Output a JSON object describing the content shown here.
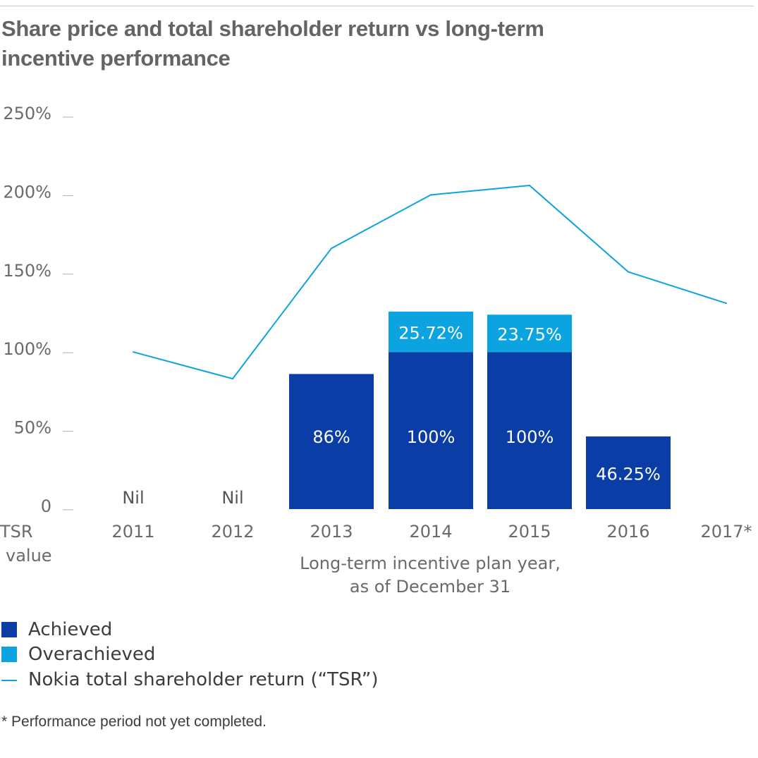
{
  "title": "Share price and total shareholder return vs long-term incentive performance",
  "chart_data": {
    "type": "bar",
    "categories": [
      "2011",
      "2012",
      "2013",
      "2014",
      "2015",
      "2016",
      "2017*"
    ],
    "series": [
      {
        "name": "Achieved",
        "values": [
          0,
          0,
          86,
          100,
          100,
          46.25,
          null
        ],
        "labels": [
          "Nil",
          "Nil",
          "86%",
          "100%",
          "100%",
          "46.25%",
          ""
        ]
      },
      {
        "name": "Overachieved",
        "values": [
          0,
          0,
          0,
          25.72,
          23.75,
          0,
          null
        ],
        "labels": [
          "",
          "",
          "",
          "25.72%",
          "23.75%",
          "",
          ""
        ]
      },
      {
        "name": "Nokia total shareholder return (“TSR”)",
        "type": "line",
        "values": [
          100,
          83,
          166,
          200,
          206,
          151,
          131
        ]
      }
    ],
    "ylim": [
      0,
      250
    ],
    "yticks": [
      0,
      50,
      100,
      150,
      200,
      250
    ],
    "ytick_labels": [
      "0",
      "50%",
      "100%",
      "150%",
      "200%",
      "250%"
    ],
    "ylabel": "TSR value",
    "xlabel": "Long-term incentive plan year, as of December 31",
    "colors": {
      "achieved": "#0a3ea6",
      "overachieved": "#0ca4e0",
      "tsr": "#0ca4e0"
    },
    "legend_position": "bottom-left"
  },
  "ylabel_lines": [
    "TSR",
    "value"
  ],
  "xlabel_lines": [
    "Long-term incentive plan year,",
    "as of December 31"
  ],
  "legend": {
    "achieved": "Achieved",
    "overachieved": "Overachieved",
    "tsr": "Nokia total shareholder return (“TSR”)"
  },
  "footnote": "* Performance period not yet completed."
}
